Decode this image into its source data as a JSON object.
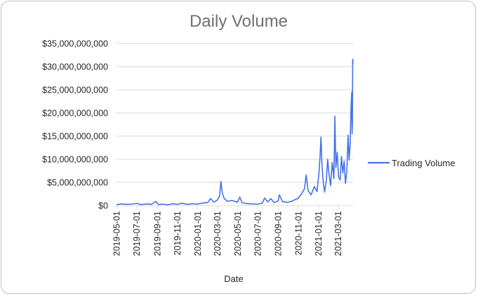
{
  "chart_data": {
    "type": "line",
    "title": "Daily Volume",
    "xlabel": "Date",
    "ylabel": "",
    "ylim": [
      0,
      35000000000
    ],
    "yticks": [
      {
        "value": 0,
        "label": "$0"
      },
      {
        "value": 5000000000,
        "label": "$5,000,000,000"
      },
      {
        "value": 10000000000,
        "label": "$10,000,000,000"
      },
      {
        "value": 15000000000,
        "label": "$15,000,000,000"
      },
      {
        "value": 20000000000,
        "label": "$20,000,000,000"
      },
      {
        "value": 25000000000,
        "label": "$25,000,000,000"
      },
      {
        "value": 30000000000,
        "label": "$30,000,000,000"
      },
      {
        "value": 35000000000,
        "label": "$35,000,000,000"
      }
    ],
    "xlim": [
      "2019-05-01",
      "2021-04-16"
    ],
    "xticks": [
      "2019-05-01",
      "2019-07-01",
      "2019-09-01",
      "2019-11-01",
      "2020-01-01",
      "2020-03-01",
      "2020-05-01",
      "2020-07-01",
      "2020-09-01",
      "2020-11-01",
      "2021-01-01",
      "2021-03-01"
    ],
    "grid": "horizontal",
    "legend": "right",
    "series": [
      {
        "name": "Trading Volume",
        "color": "#4472e8",
        "points": [
          [
            "2019-05-01",
            150000000
          ],
          [
            "2019-05-15",
            350000000
          ],
          [
            "2019-06-01",
            250000000
          ],
          [
            "2019-06-15",
            300000000
          ],
          [
            "2019-07-01",
            450000000
          ],
          [
            "2019-07-15",
            200000000
          ],
          [
            "2019-08-01",
            350000000
          ],
          [
            "2019-08-15",
            250000000
          ],
          [
            "2019-08-28",
            900000000
          ],
          [
            "2019-09-05",
            200000000
          ],
          [
            "2019-09-20",
            300000000
          ],
          [
            "2019-10-01",
            150000000
          ],
          [
            "2019-10-20",
            400000000
          ],
          [
            "2019-11-01",
            250000000
          ],
          [
            "2019-11-15",
            500000000
          ],
          [
            "2019-12-01",
            250000000
          ],
          [
            "2019-12-15",
            400000000
          ],
          [
            "2020-01-01",
            300000000
          ],
          [
            "2020-01-15",
            500000000
          ],
          [
            "2020-02-01",
            650000000
          ],
          [
            "2020-02-10",
            1500000000
          ],
          [
            "2020-02-20",
            700000000
          ],
          [
            "2020-03-01",
            1200000000
          ],
          [
            "2020-03-08",
            2000000000
          ],
          [
            "2020-03-12",
            5200000000
          ],
          [
            "2020-03-16",
            2800000000
          ],
          [
            "2020-03-22",
            1500000000
          ],
          [
            "2020-04-01",
            900000000
          ],
          [
            "2020-04-15",
            1100000000
          ],
          [
            "2020-05-01",
            700000000
          ],
          [
            "2020-05-08",
            1800000000
          ],
          [
            "2020-05-15",
            600000000
          ],
          [
            "2020-06-01",
            400000000
          ],
          [
            "2020-06-15",
            350000000
          ],
          [
            "2020-07-01",
            300000000
          ],
          [
            "2020-07-15",
            500000000
          ],
          [
            "2020-07-22",
            1600000000
          ],
          [
            "2020-08-01",
            800000000
          ],
          [
            "2020-08-10",
            1500000000
          ],
          [
            "2020-08-20",
            600000000
          ],
          [
            "2020-09-01",
            1000000000
          ],
          [
            "2020-09-05",
            2300000000
          ],
          [
            "2020-09-15",
            800000000
          ],
          [
            "2020-10-01",
            700000000
          ],
          [
            "2020-10-15",
            1000000000
          ],
          [
            "2020-11-01",
            1600000000
          ],
          [
            "2020-11-10",
            2400000000
          ],
          [
            "2020-11-20",
            3600000000
          ],
          [
            "2020-11-25",
            6600000000
          ],
          [
            "2020-12-01",
            3200000000
          ],
          [
            "2020-12-10",
            2300000000
          ],
          [
            "2020-12-20",
            4100000000
          ],
          [
            "2020-12-28",
            3000000000
          ],
          [
            "2021-01-03",
            7200000000
          ],
          [
            "2021-01-06",
            10400000000
          ],
          [
            "2021-01-09",
            14800000000
          ],
          [
            "2021-01-12",
            8500000000
          ],
          [
            "2021-01-16",
            4900000000
          ],
          [
            "2021-01-20",
            2900000000
          ],
          [
            "2021-01-25",
            5500000000
          ],
          [
            "2021-01-29",
            10000000000
          ],
          [
            "2021-02-02",
            7000000000
          ],
          [
            "2021-02-07",
            4300000000
          ],
          [
            "2021-02-12",
            9300000000
          ],
          [
            "2021-02-17",
            5800000000
          ],
          [
            "2021-02-20",
            19300000000
          ],
          [
            "2021-02-23",
            8200000000
          ],
          [
            "2021-02-27",
            11500000000
          ],
          [
            "2021-03-03",
            6200000000
          ],
          [
            "2021-03-08",
            5500000000
          ],
          [
            "2021-03-12",
            10600000000
          ],
          [
            "2021-03-16",
            7000000000
          ],
          [
            "2021-03-20",
            9600000000
          ],
          [
            "2021-03-24",
            4800000000
          ],
          [
            "2021-03-28",
            7400000000
          ],
          [
            "2021-04-01",
            15200000000
          ],
          [
            "2021-04-04",
            9800000000
          ],
          [
            "2021-04-07",
            13200000000
          ],
          [
            "2021-04-10",
            21500000000
          ],
          [
            "2021-04-12",
            24500000000
          ],
          [
            "2021-04-13",
            15500000000
          ],
          [
            "2021-04-14",
            18000000000
          ],
          [
            "2021-04-15",
            31600000000
          ],
          [
            "2021-04-16",
            30600000000
          ]
        ]
      }
    ]
  }
}
